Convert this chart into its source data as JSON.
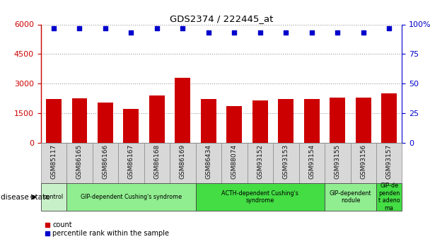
{
  "title": "GDS2374 / 222445_at",
  "samples": [
    "GSM85117",
    "GSM86165",
    "GSM86166",
    "GSM86167",
    "GSM86168",
    "GSM86169",
    "GSM86434",
    "GSM88074",
    "GSM93152",
    "GSM93153",
    "GSM93154",
    "GSM93155",
    "GSM93156",
    "GSM93157"
  ],
  "counts": [
    2200,
    2250,
    2050,
    1700,
    2400,
    3300,
    2200,
    1850,
    2150,
    2200,
    2200,
    2300,
    2300,
    2500
  ],
  "percentiles": [
    97,
    97,
    97,
    93,
    97,
    97,
    93,
    93,
    93,
    93,
    93,
    93,
    93,
    97
  ],
  "bar_color": "#cc0000",
  "dot_color": "#0000cc",
  "ylim_left": [
    0,
    6000
  ],
  "ylim_right": [
    0,
    100
  ],
  "yticks_left": [
    0,
    1500,
    3000,
    4500,
    6000
  ],
  "yticks_right": [
    0,
    25,
    50,
    75,
    100
  ],
  "groups": [
    {
      "label": "control",
      "start": 0,
      "end": 1,
      "color": "#c8f0c8"
    },
    {
      "label": "GIP-dependent Cushing's syndrome",
      "start": 1,
      "end": 6,
      "color": "#90ee90"
    },
    {
      "label": "ACTH-dependent Cushing's\nsyndrome",
      "start": 6,
      "end": 11,
      "color": "#44dd44"
    },
    {
      "label": "GIP-dependent\nnodule",
      "start": 11,
      "end": 13,
      "color": "#90ee90"
    },
    {
      "label": "GIP-de\npenden\nt adeno\nma",
      "start": 13,
      "end": 14,
      "color": "#44dd44"
    }
  ],
  "axis_left_color": "#cc0000",
  "axis_right_color": "#0000cc",
  "bg_color": "#ffffff",
  "sample_bg_color": "#d8d8d8",
  "disease_state_label": "disease state"
}
